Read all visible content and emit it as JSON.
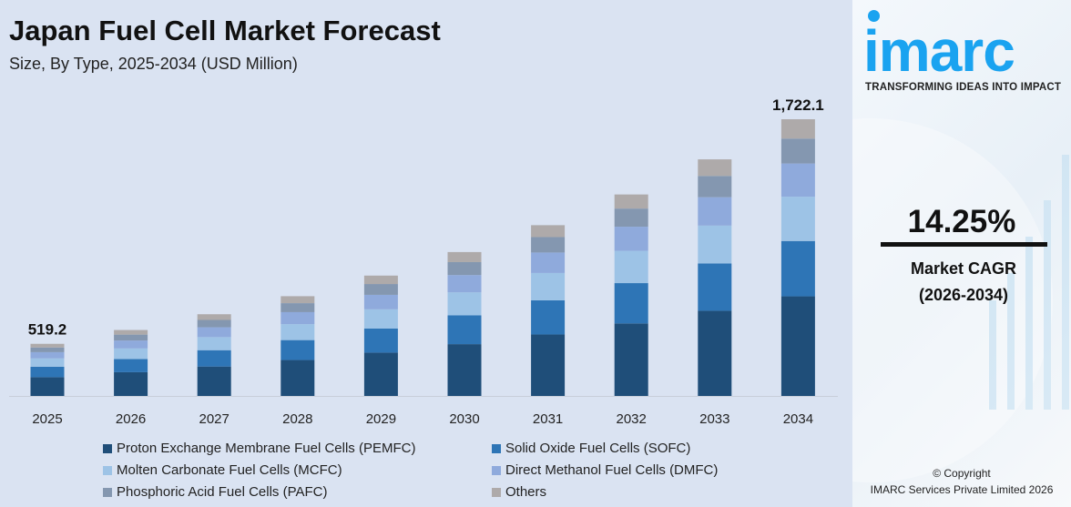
{
  "header": {
    "title": "Japan Fuel Cell Market Forecast",
    "subtitle": "Size, By Type, 2025-2034 (USD Million)"
  },
  "chart_data": {
    "type": "bar",
    "stacked": true,
    "title": "Japan Fuel Cell Market Forecast",
    "subtitle": "Size, By Type, 2025-2034 (USD Million)",
    "categories": [
      "2025",
      "2026",
      "2027",
      "2028",
      "2029",
      "2030",
      "2031",
      "2032",
      "2033",
      "2034"
    ],
    "totals": [
      519.2,
      593.2,
      677.7,
      774.3,
      884.6,
      1010.7,
      1154.7,
      1319.2,
      1507.2,
      1722.1
    ],
    "data_labels": {
      "0": "519.2",
      "9": "1,722.1"
    },
    "ylim": [
      240,
      1722.1
    ],
    "grid": false,
    "legend_placement": "bottom",
    "series": [
      {
        "name": "Proton Exchange Membrane Fuel Cells (PEMFC)",
        "color": "#1f4e79",
        "share": 0.36
      },
      {
        "name": "Solid Oxide Fuel Cells (SOFC)",
        "color": "#2e75b6",
        "share": 0.2
      },
      {
        "name": "Molten Carbonate Fuel Cells (MCFC)",
        "color": "#9dc3e6",
        "share": 0.16
      },
      {
        "name": "Direct Methanol Fuel Cells (DMFC)",
        "color": "#8faadc",
        "share": 0.12
      },
      {
        "name": "Phosphoric Acid Fuel Cells (PAFC)",
        "color": "#8497b0",
        "share": 0.09
      },
      {
        "name": "Others",
        "color": "#aeaaaa",
        "share": 0.07
      }
    ]
  },
  "panel": {
    "logo": "imarc",
    "tagline": "TRANSFORMING IDEAS INTO IMPACT",
    "cagr_value": "14.25%",
    "cagr_label": "Market CAGR",
    "cagr_period": "(2026-2034)",
    "copyright": "© Copyright",
    "company": "IMARC Services Private Limited 2026",
    "brand_color": "#1aa3f0"
  }
}
